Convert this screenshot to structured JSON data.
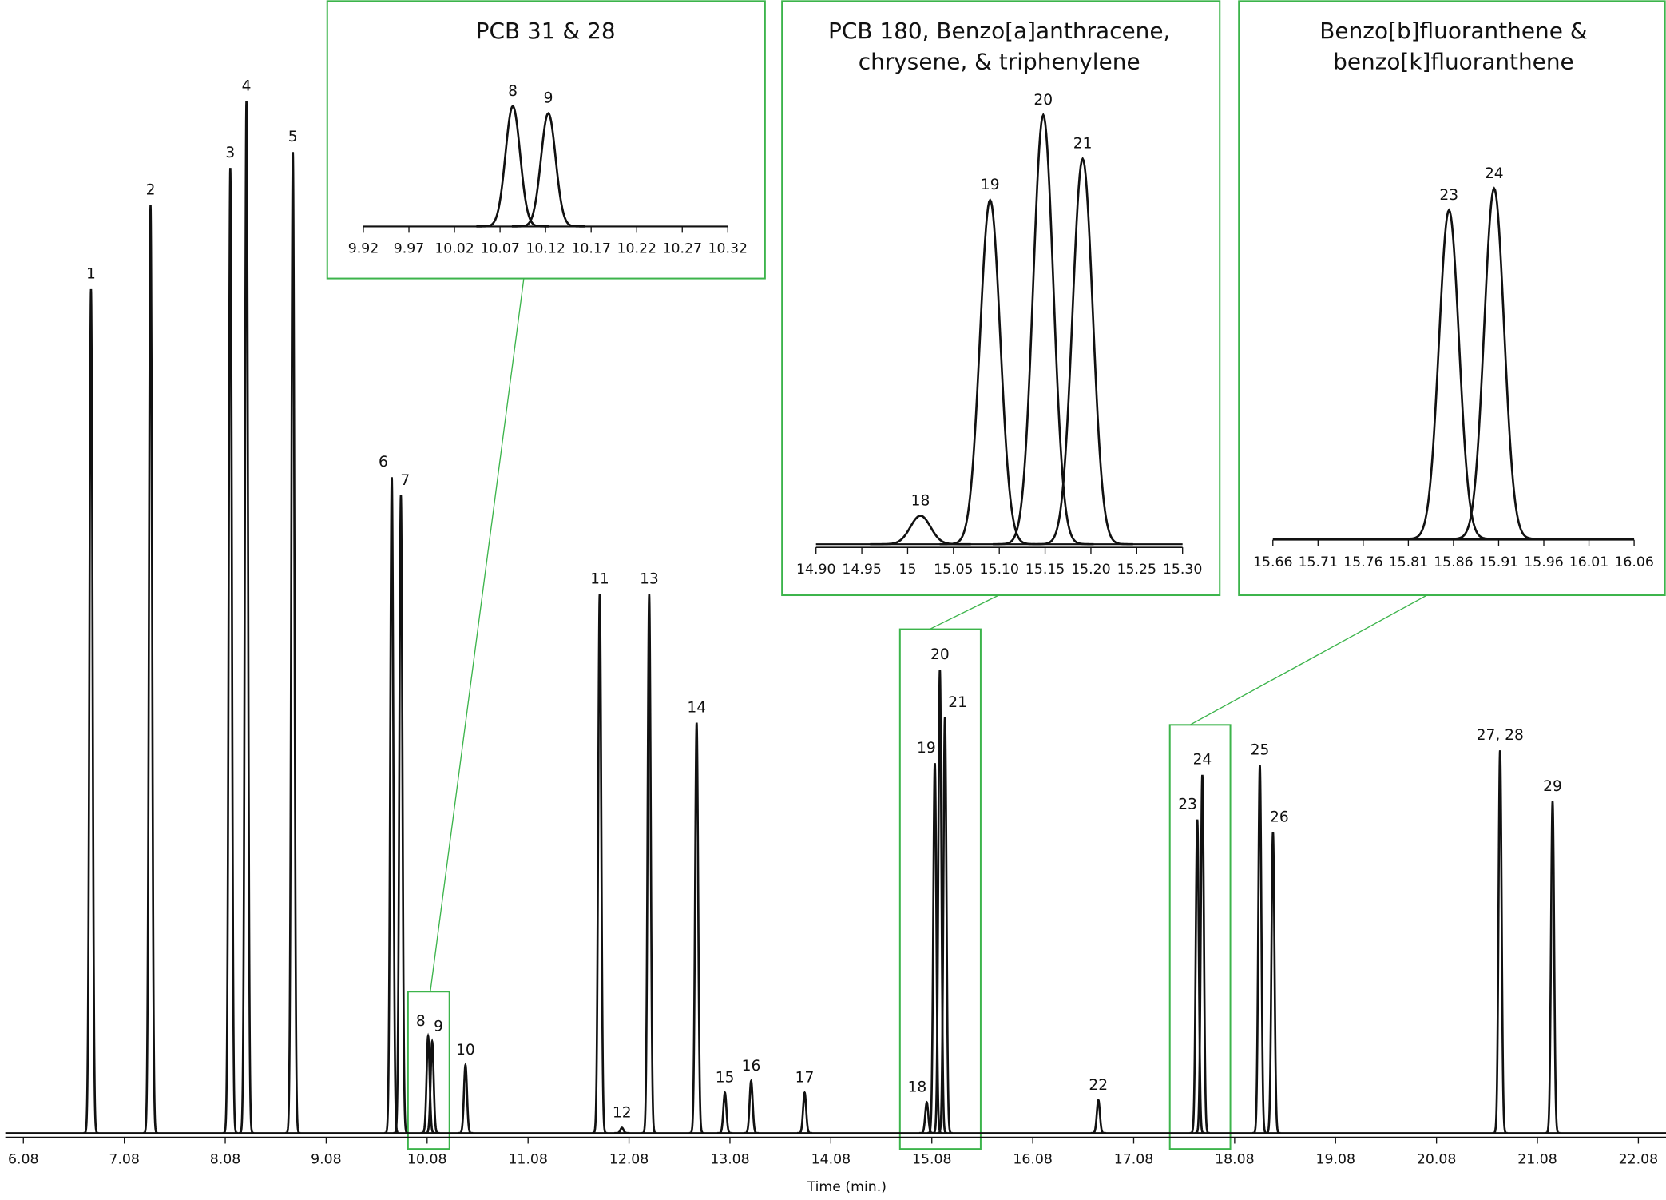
{
  "chart_data": [
    {
      "type": "line",
      "xlabel": "Time (min.)",
      "xlim": [
        5.9,
        22.35
      ],
      "ylim": [
        0,
        1000
      ],
      "xticks": [
        6.08,
        7.08,
        8.08,
        9.08,
        10.08,
        11.08,
        12.08,
        13.08,
        14.08,
        15.08,
        16.08,
        17.08,
        18.08,
        19.08,
        20.08,
        21.08,
        22.08
      ],
      "color": "#111111",
      "x": [
        6.75,
        7.34,
        8.13,
        8.29,
        8.75,
        9.73,
        9.82,
        10.09,
        10.13,
        10.46,
        11.79,
        12.01,
        12.28,
        12.75,
        13.03,
        13.29,
        13.82,
        15.03,
        15.11,
        15.16,
        15.21,
        16.73,
        17.71,
        17.76,
        18.33,
        18.46,
        20.71,
        21.23
      ],
      "values": [
        794,
        873,
        908,
        971,
        923,
        617,
        600,
        91,
        86,
        64,
        507,
        5,
        507,
        386,
        38,
        49,
        38,
        29,
        348,
        436,
        391,
        31,
        295,
        337,
        346,
        283,
        360,
        312
      ],
      "labels": [
        "1",
        "2",
        "3",
        "4",
        "5",
        "6",
        "7",
        "8",
        "9",
        "10",
        "11",
        "12",
        "13",
        "14",
        "15",
        "16",
        "17",
        "18",
        "19",
        "20",
        "21",
        "22",
        "23",
        "24",
        "25",
        "26",
        "27, 28",
        "29"
      ]
    },
    {
      "type": "line",
      "title": [
        "PCB 31 & 28"
      ],
      "xlim": [
        9.92,
        10.32
      ],
      "ylim": [
        0,
        100
      ],
      "xticks": [
        9.92,
        9.97,
        10.02,
        10.07,
        10.12,
        10.17,
        10.22,
        10.27,
        10.32
      ],
      "color": "#111111",
      "x": [
        10.084,
        10.123
      ],
      "values": [
        85,
        80
      ],
      "labels": [
        "8",
        "9"
      ]
    },
    {
      "type": "line",
      "title": [
        "PCB 180, Benzo[a]anthracene,",
        "chrysene, & triphenylene"
      ],
      "xlim": [
        14.9,
        15.3
      ],
      "ylim": [
        0,
        100
      ],
      "xticks": [
        {
          "value": 14.9,
          "label": "14.90"
        },
        14.95,
        15,
        15.05,
        {
          "value": 15.1,
          "label": "15.10"
        },
        15.15,
        {
          "value": 15.2,
          "label": "15.20"
        },
        15.25,
        {
          "value": 15.3,
          "label": "15.30"
        }
      ],
      "color": "#111111",
      "x": [
        15.014,
        15.09,
        15.148,
        15.191
      ],
      "values": [
        6.5,
        78.6,
        98,
        88
      ],
      "labels": [
        "18",
        "19",
        "20",
        "21"
      ]
    },
    {
      "type": "line",
      "title": [
        "Benzo[b]fluoranthene &",
        "benzo[k]fluoranthene"
      ],
      "xlim": [
        15.66,
        16.06
      ],
      "ylim": [
        0,
        100
      ],
      "xticks": [
        15.66,
        15.71,
        15.76,
        15.81,
        15.86,
        15.91,
        15.96,
        16.01,
        16.06
      ],
      "color": "#111111",
      "x": [
        15.855,
        15.905
      ],
      "values": [
        76,
        81
      ],
      "labels": [
        "23",
        "24"
      ]
    }
  ]
}
